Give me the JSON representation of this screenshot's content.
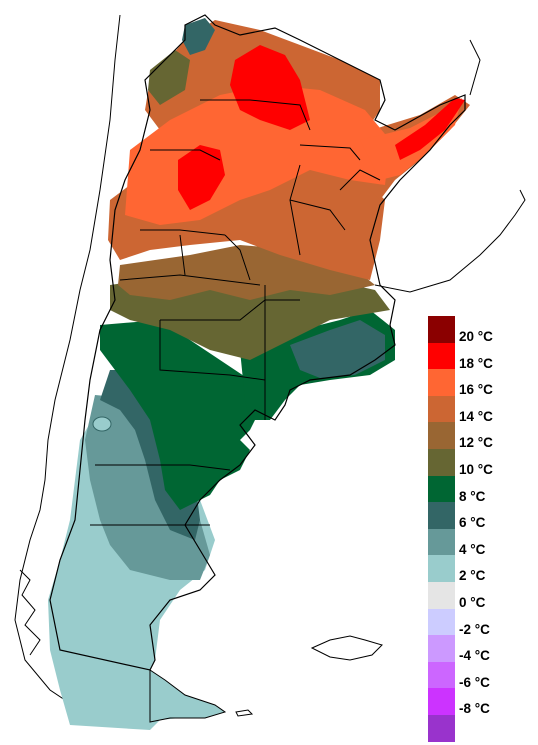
{
  "legend": {
    "unit": "°C",
    "bins": [
      {
        "color": "#8b0000",
        "label": "20 °C"
      },
      {
        "color": "#ff0000",
        "label": "18 °C"
      },
      {
        "color": "#ff6633",
        "label": "16 °C"
      },
      {
        "color": "#cc6633",
        "label": "14 °C"
      },
      {
        "color": "#996633",
        "label": "12 °C"
      },
      {
        "color": "#666633",
        "label": "10 °C"
      },
      {
        "color": "#006633",
        "label": "8 °C"
      },
      {
        "color": "#336666",
        "label": "6 °C"
      },
      {
        "color": "#669999",
        "label": "4 °C"
      },
      {
        "color": "#99cccc",
        "label": "2 °C"
      },
      {
        "color": "#e5e5e5",
        "label": "0 °C"
      },
      {
        "color": "#ccccff",
        "label": "-2 °C"
      },
      {
        "color": "#cc99ff",
        "label": "-4 °C"
      },
      {
        "color": "#cc66ff",
        "label": "-6 °C"
      },
      {
        "color": "#cc33ff",
        "label": "-8 °C"
      },
      {
        "color": "#9933cc",
        "label": ""
      }
    ]
  },
  "colors": {
    "border": "#000000",
    "background": "#ffffff"
  }
}
